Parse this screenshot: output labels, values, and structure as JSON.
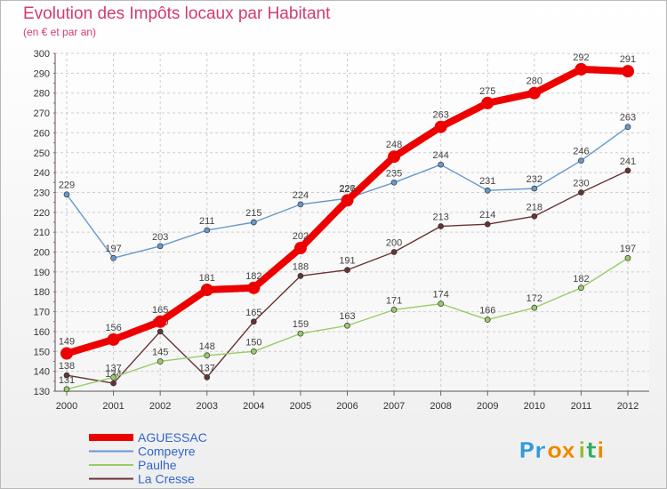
{
  "chart_data": {
    "type": "line",
    "title": "Evolution des Impôts locaux par Habitant",
    "subtitle": "(en € et par an)",
    "categories": [
      "2000",
      "2001",
      "2002",
      "2003",
      "2004",
      "2005",
      "2006",
      "2007",
      "2008",
      "2009",
      "2010",
      "2011",
      "2012"
    ],
    "ylim": [
      130,
      300
    ],
    "yticks": [
      130,
      140,
      150,
      160,
      170,
      180,
      190,
      200,
      210,
      220,
      230,
      240,
      250,
      260,
      270,
      280,
      290,
      300
    ],
    "grid": true,
    "legend_position": "bottom-left",
    "series": [
      {
        "name": "AGUESSAC",
        "color": "#ee0000",
        "values": [
          149,
          156,
          165,
          181,
          182,
          202,
          226,
          248,
          263,
          275,
          280,
          292,
          291
        ]
      },
      {
        "name": "Compeyre",
        "color": "#6699cc",
        "values": [
          229,
          197,
          203,
          211,
          215,
          224,
          227,
          235,
          244,
          231,
          232,
          246,
          263
        ]
      },
      {
        "name": "Paulhe",
        "color": "#99cc66",
        "values": [
          131,
          137,
          145,
          148,
          150,
          159,
          163,
          171,
          174,
          166,
          172,
          182,
          197
        ]
      },
      {
        "name": "La Cresse",
        "color": "#663333",
        "values": [
          138,
          134,
          160,
          137,
          165,
          188,
          191,
          200,
          213,
          214,
          218,
          230,
          241
        ]
      }
    ]
  },
  "brand": {
    "text": "Proxiti",
    "letters": [
      "P",
      "r",
      "o",
      "x",
      "i",
      "t",
      "i"
    ],
    "colors": [
      "#3399dd",
      "#3399dd",
      "#ee8800",
      "#ee8800",
      "#99bb33",
      "#33aa66",
      "#ee8800"
    ]
  }
}
